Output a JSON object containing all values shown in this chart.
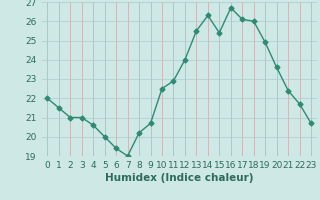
{
  "xlabel": "Humidex (Indice chaleur)",
  "x": [
    0,
    1,
    2,
    3,
    4,
    5,
    6,
    7,
    8,
    9,
    10,
    11,
    12,
    13,
    14,
    15,
    16,
    17,
    18,
    19,
    20,
    21,
    22,
    23
  ],
  "y": [
    22.0,
    21.5,
    21.0,
    21.0,
    20.6,
    20.0,
    19.4,
    19.0,
    20.2,
    20.7,
    22.5,
    22.9,
    24.0,
    25.5,
    26.3,
    25.4,
    26.7,
    26.1,
    26.0,
    24.9,
    23.6,
    22.4,
    21.7,
    20.7
  ],
  "line_color": "#2e8b72",
  "marker": "D",
  "marker_size": 2.5,
  "bg_color": "#cde8e5",
  "grid_color_major": "#b8d4d0",
  "grid_color_minor": "#d4aaaa",
  "ylim": [
    19,
    27
  ],
  "yticks": [
    19,
    20,
    21,
    22,
    23,
    24,
    25,
    26,
    27
  ],
  "xticks": [
    0,
    1,
    2,
    3,
    4,
    5,
    6,
    7,
    8,
    9,
    10,
    11,
    12,
    13,
    14,
    15,
    16,
    17,
    18,
    19,
    20,
    21,
    22,
    23
  ],
  "tick_label_fontsize": 6.5,
  "xlabel_fontsize": 7.5,
  "label_color": "#2e6b5a"
}
